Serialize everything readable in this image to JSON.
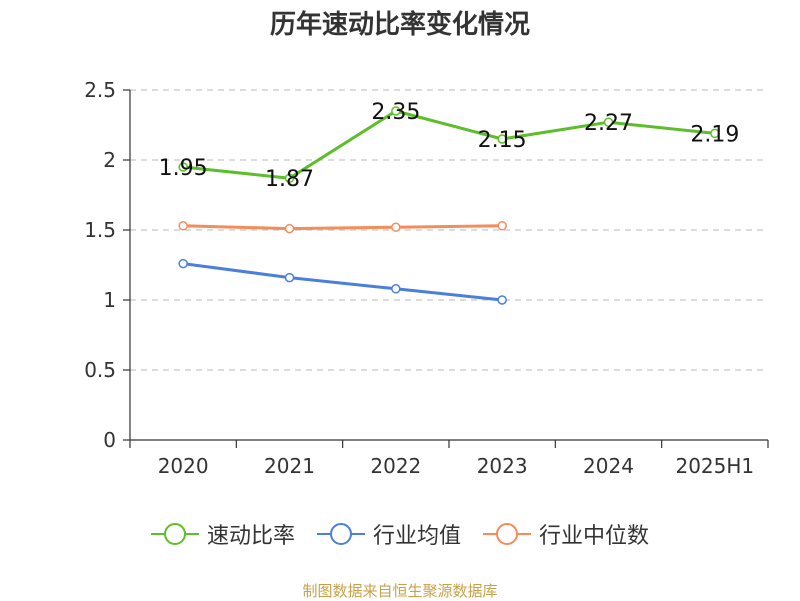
{
  "chart_data": {
    "type": "line",
    "title": "历年速动比率变化情况",
    "categories": [
      "2020",
      "2021",
      "2022",
      "2023",
      "2024",
      "2025H1"
    ],
    "ylim": [
      0,
      2.5
    ],
    "yticks": [
      "0",
      "0.5",
      "1",
      "1.5",
      "2",
      "2.5"
    ],
    "ytick_values": [
      0,
      0.5,
      1,
      1.5,
      2,
      2.5
    ],
    "grid": true,
    "legend_position": "bottom",
    "series": [
      {
        "name": "速动比率",
        "color": "#5cbf2a",
        "values": [
          1.95,
          1.87,
          2.35,
          2.15,
          2.27,
          2.19
        ],
        "labels": [
          "1.95",
          "1.87",
          "2.35",
          "2.15",
          "2.27",
          "2.19"
        ],
        "show_labels": true
      },
      {
        "name": "行业均值",
        "color": "#4a7fdc",
        "values": [
          1.26,
          1.16,
          1.08,
          1.0,
          null,
          null
        ],
        "show_labels": false
      },
      {
        "name": "行业中位数",
        "color": "#f58c5a",
        "values": [
          1.53,
          1.51,
          1.52,
          1.53,
          null,
          null
        ],
        "show_labels": false
      }
    ]
  },
  "source_note": "制图数据来自恒生聚源数据库"
}
